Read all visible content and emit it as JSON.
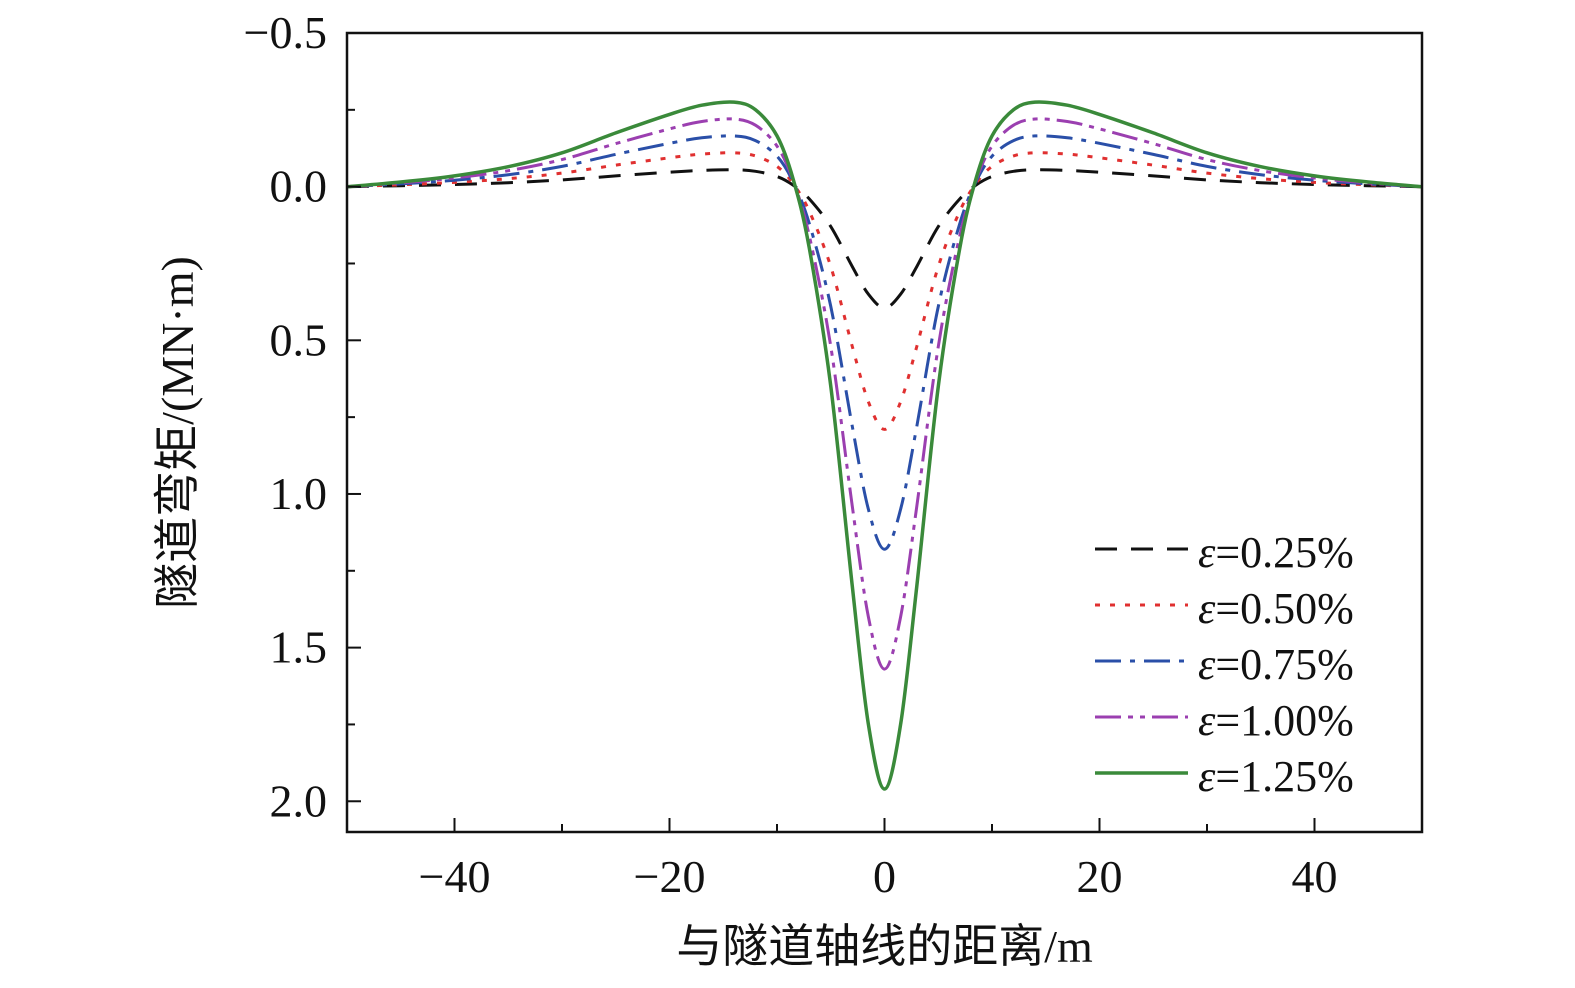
{
  "chart_data": {
    "type": "line",
    "xlabel": "与隧道轴线的距离/m",
    "ylabel": "隧道弯矩/(MN·m)",
    "xlim": [
      -50,
      50
    ],
    "ylim": [
      -0.5,
      2.1
    ],
    "y_inverted": true,
    "x_ticks": [
      -40,
      -20,
      0,
      20,
      40
    ],
    "x_tick_labels": [
      "−40",
      "−20",
      "0",
      "20",
      "40"
    ],
    "y_ticks": [
      -0.5,
      0.0,
      0.5,
      1.0,
      1.5,
      2.0
    ],
    "y_tick_labels": [
      "−0.5",
      "0.0",
      "0.5",
      "1.0",
      "1.5",
      "2.0"
    ],
    "legend_position": "bottom-right",
    "x": [
      -50,
      -45,
      -40,
      -35,
      -30,
      -25,
      -20,
      -17,
      -14,
      -12,
      -10,
      -8.5,
      -7,
      -5,
      -3,
      -1.5,
      0,
      1.5,
      3,
      5,
      7,
      8.5,
      10,
      12,
      14,
      17,
      20,
      25,
      30,
      35,
      40,
      45,
      50
    ],
    "series": [
      {
        "name": "ε=0.25%",
        "legend_prefix": "ε",
        "legend_suffix": "=0.25%",
        "color": "#111111",
        "dash": "22,14",
        "values": [
          0.0,
          -0.003,
          -0.007,
          -0.013,
          -0.022,
          -0.035,
          -0.047,
          -0.053,
          -0.055,
          -0.05,
          -0.033,
          -0.005,
          0.04,
          0.13,
          0.26,
          0.35,
          0.395,
          0.35,
          0.26,
          0.13,
          0.04,
          -0.005,
          -0.033,
          -0.05,
          -0.055,
          -0.053,
          -0.047,
          -0.035,
          -0.022,
          -0.013,
          -0.007,
          -0.003,
          0.0
        ]
      },
      {
        "name": "ε=0.50%",
        "legend_prefix": "ε",
        "legend_suffix": "=0.50%",
        "color": "#e03030",
        "dash": "5,10",
        "values": [
          0.0,
          -0.006,
          -0.014,
          -0.026,
          -0.044,
          -0.07,
          -0.094,
          -0.106,
          -0.11,
          -0.1,
          -0.066,
          -0.01,
          0.08,
          0.26,
          0.52,
          0.7,
          0.79,
          0.7,
          0.52,
          0.26,
          0.08,
          -0.01,
          -0.066,
          -0.1,
          -0.11,
          -0.106,
          -0.094,
          -0.07,
          -0.044,
          -0.026,
          -0.014,
          -0.006,
          0.0
        ]
      },
      {
        "name": "ε=0.75%",
        "legend_prefix": "ε",
        "legend_suffix": "=0.75%",
        "color": "#2a4fa8",
        "dash": "26,9,5,9",
        "values": [
          0.0,
          -0.009,
          -0.021,
          -0.039,
          -0.066,
          -0.105,
          -0.141,
          -0.159,
          -0.165,
          -0.15,
          -0.099,
          -0.015,
          0.12,
          0.39,
          0.78,
          1.05,
          1.18,
          1.05,
          0.78,
          0.39,
          0.12,
          -0.015,
          -0.099,
          -0.15,
          -0.165,
          -0.159,
          -0.141,
          -0.105,
          -0.066,
          -0.039,
          -0.021,
          -0.009,
          0.0
        ]
      },
      {
        "name": "ε=1.00%",
        "legend_prefix": "ε",
        "legend_suffix": "=1.00%",
        "color": "#9b3fb0",
        "dash": "26,7,5,7,5,7",
        "values": [
          0.0,
          -0.012,
          -0.028,
          -0.052,
          -0.088,
          -0.14,
          -0.188,
          -0.212,
          -0.22,
          -0.2,
          -0.132,
          -0.02,
          0.16,
          0.52,
          1.04,
          1.4,
          1.57,
          1.4,
          1.04,
          0.52,
          0.16,
          -0.02,
          -0.132,
          -0.2,
          -0.22,
          -0.212,
          -0.188,
          -0.14,
          -0.088,
          -0.052,
          -0.028,
          -0.012,
          0.0
        ]
      },
      {
        "name": "ε=1.25%",
        "legend_prefix": "ε",
        "legend_suffix": "=1.25%",
        "color": "#3a8a3a",
        "dash": "",
        "values": [
          0.0,
          -0.015,
          -0.035,
          -0.065,
          -0.11,
          -0.175,
          -0.235,
          -0.265,
          -0.275,
          -0.25,
          -0.165,
          -0.025,
          0.2,
          0.65,
          1.3,
          1.75,
          1.96,
          1.75,
          1.3,
          0.65,
          0.2,
          -0.025,
          -0.165,
          -0.25,
          -0.275,
          -0.265,
          -0.235,
          -0.175,
          -0.11,
          -0.065,
          -0.035,
          -0.015,
          0.0
        ]
      }
    ]
  }
}
